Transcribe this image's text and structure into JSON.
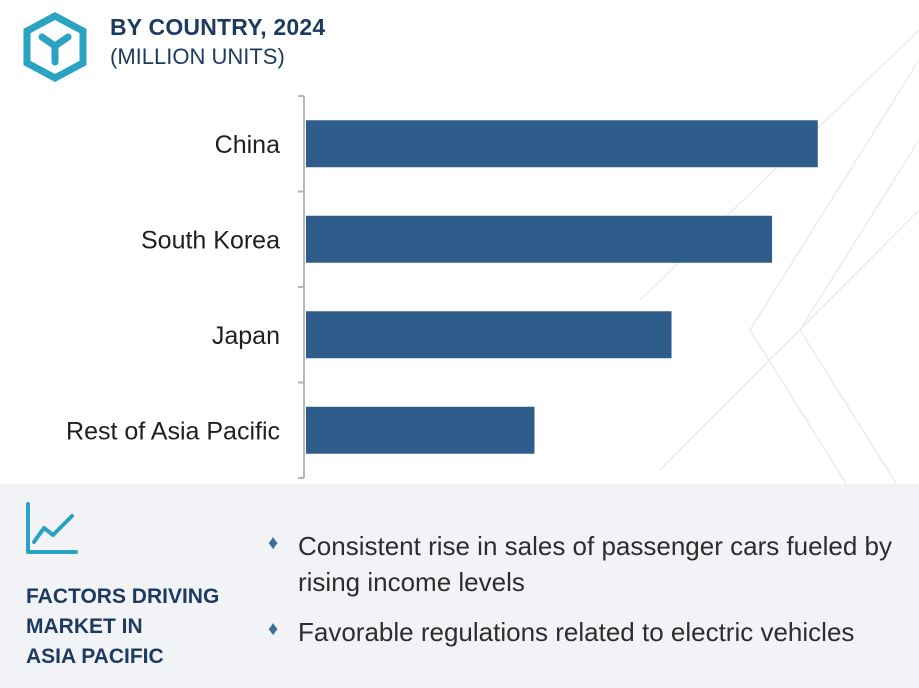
{
  "header": {
    "title": "BY COUNTRY, 2024",
    "subtitle": "(MILLION UNITS)",
    "logo_icon": "hexagon-y-logo-icon"
  },
  "chart_data": {
    "type": "bar",
    "orientation": "horizontal",
    "categories": [
      "China",
      "South Korea",
      "Japan",
      "Rest of Asia Pacific"
    ],
    "values": [
      5.6,
      5.1,
      4.0,
      2.5
    ],
    "xlim": [
      0,
      6.5
    ],
    "value_labels_shown": false,
    "x_axis_shown": false,
    "grid": false,
    "bar_color": "#2e5d8c"
  },
  "factors": {
    "icon": "trend-line-chart-icon",
    "title_lines": [
      "FACTORS DRIVING",
      "MARKET IN",
      "ASIA PACIFIC"
    ],
    "bullets": [
      "Consistent rise in sales of passenger cars fueled by rising income levels",
      "Favorable regulations related to electric vehicles"
    ]
  },
  "colors": {
    "accent": "#2aa3c2",
    "title": "#1d3a5f",
    "bar": "#2e5d8c",
    "panel": "#f2f3f7",
    "diamond": "#3d6e9e"
  }
}
